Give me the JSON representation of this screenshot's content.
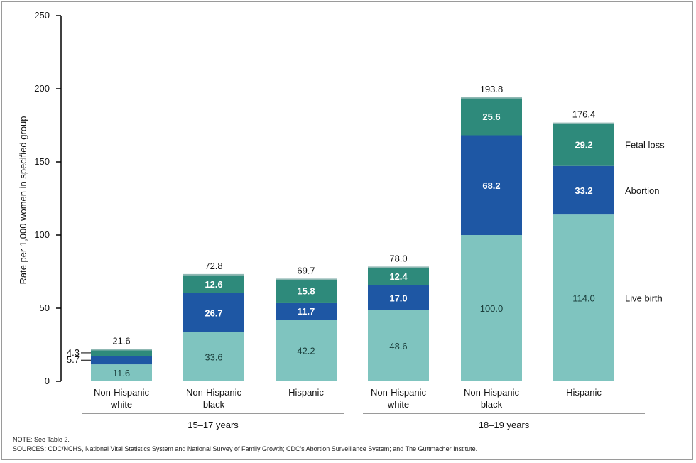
{
  "chart_data": {
    "type": "bar",
    "stacked": true,
    "ylabel": "Rate per 1,000 women in specified group",
    "ylim": [
      0,
      250
    ],
    "yticks": [
      0,
      50,
      100,
      150,
      200,
      250
    ],
    "categories": [
      {
        "line1": "Non-Hispanic",
        "line2": "white"
      },
      {
        "line1": "Non-Hispanic",
        "line2": "black"
      },
      {
        "line1": "Hispanic",
        "line2": ""
      },
      {
        "line1": "Non-Hispanic",
        "line2": "white"
      },
      {
        "line1": "Non-Hispanic",
        "line2": "black"
      },
      {
        "line1": "Hispanic",
        "line2": ""
      }
    ],
    "groups": [
      {
        "label": "15–17 years"
      },
      {
        "label": "18–19 years"
      }
    ],
    "series": [
      {
        "name": "Live birth",
        "color": "#7fc4bf",
        "values": [
          11.6,
          33.6,
          42.2,
          48.6,
          100.0,
          114.0
        ],
        "labels": [
          "11.6",
          "33.6",
          "42.2",
          "48.6",
          "100.0",
          "114.0"
        ]
      },
      {
        "name": "Abortion",
        "color": "#1e57a4",
        "values": [
          5.7,
          26.7,
          11.7,
          17.0,
          68.2,
          33.2
        ],
        "labels": [
          "5.7",
          "26.7",
          "11.7",
          "17.0",
          "68.2",
          "33.2"
        ]
      },
      {
        "name": "Fetal loss",
        "color": "#2e8a7b",
        "values": [
          4.3,
          12.6,
          15.8,
          12.4,
          25.6,
          29.2
        ],
        "labels": [
          "4.3",
          "12.6",
          "15.8",
          "12.4",
          "25.6",
          "29.2"
        ]
      }
    ],
    "totals": [
      "21.6",
      "72.8",
      "69.7",
      "78.0",
      "193.8",
      "176.4"
    ],
    "legend": [
      "Fetal loss",
      "Abortion",
      "Live birth"
    ],
    "legend_placement": "right, beside last bar"
  },
  "footnotes": {
    "note": "NOTE: See Table 2.",
    "sources": "SOURCES: CDC/NCHS, National Vital Statistics System and National Survey of Family Growth; CDC's Abortion Surveillance System; and The Guttmacher Institute."
  }
}
